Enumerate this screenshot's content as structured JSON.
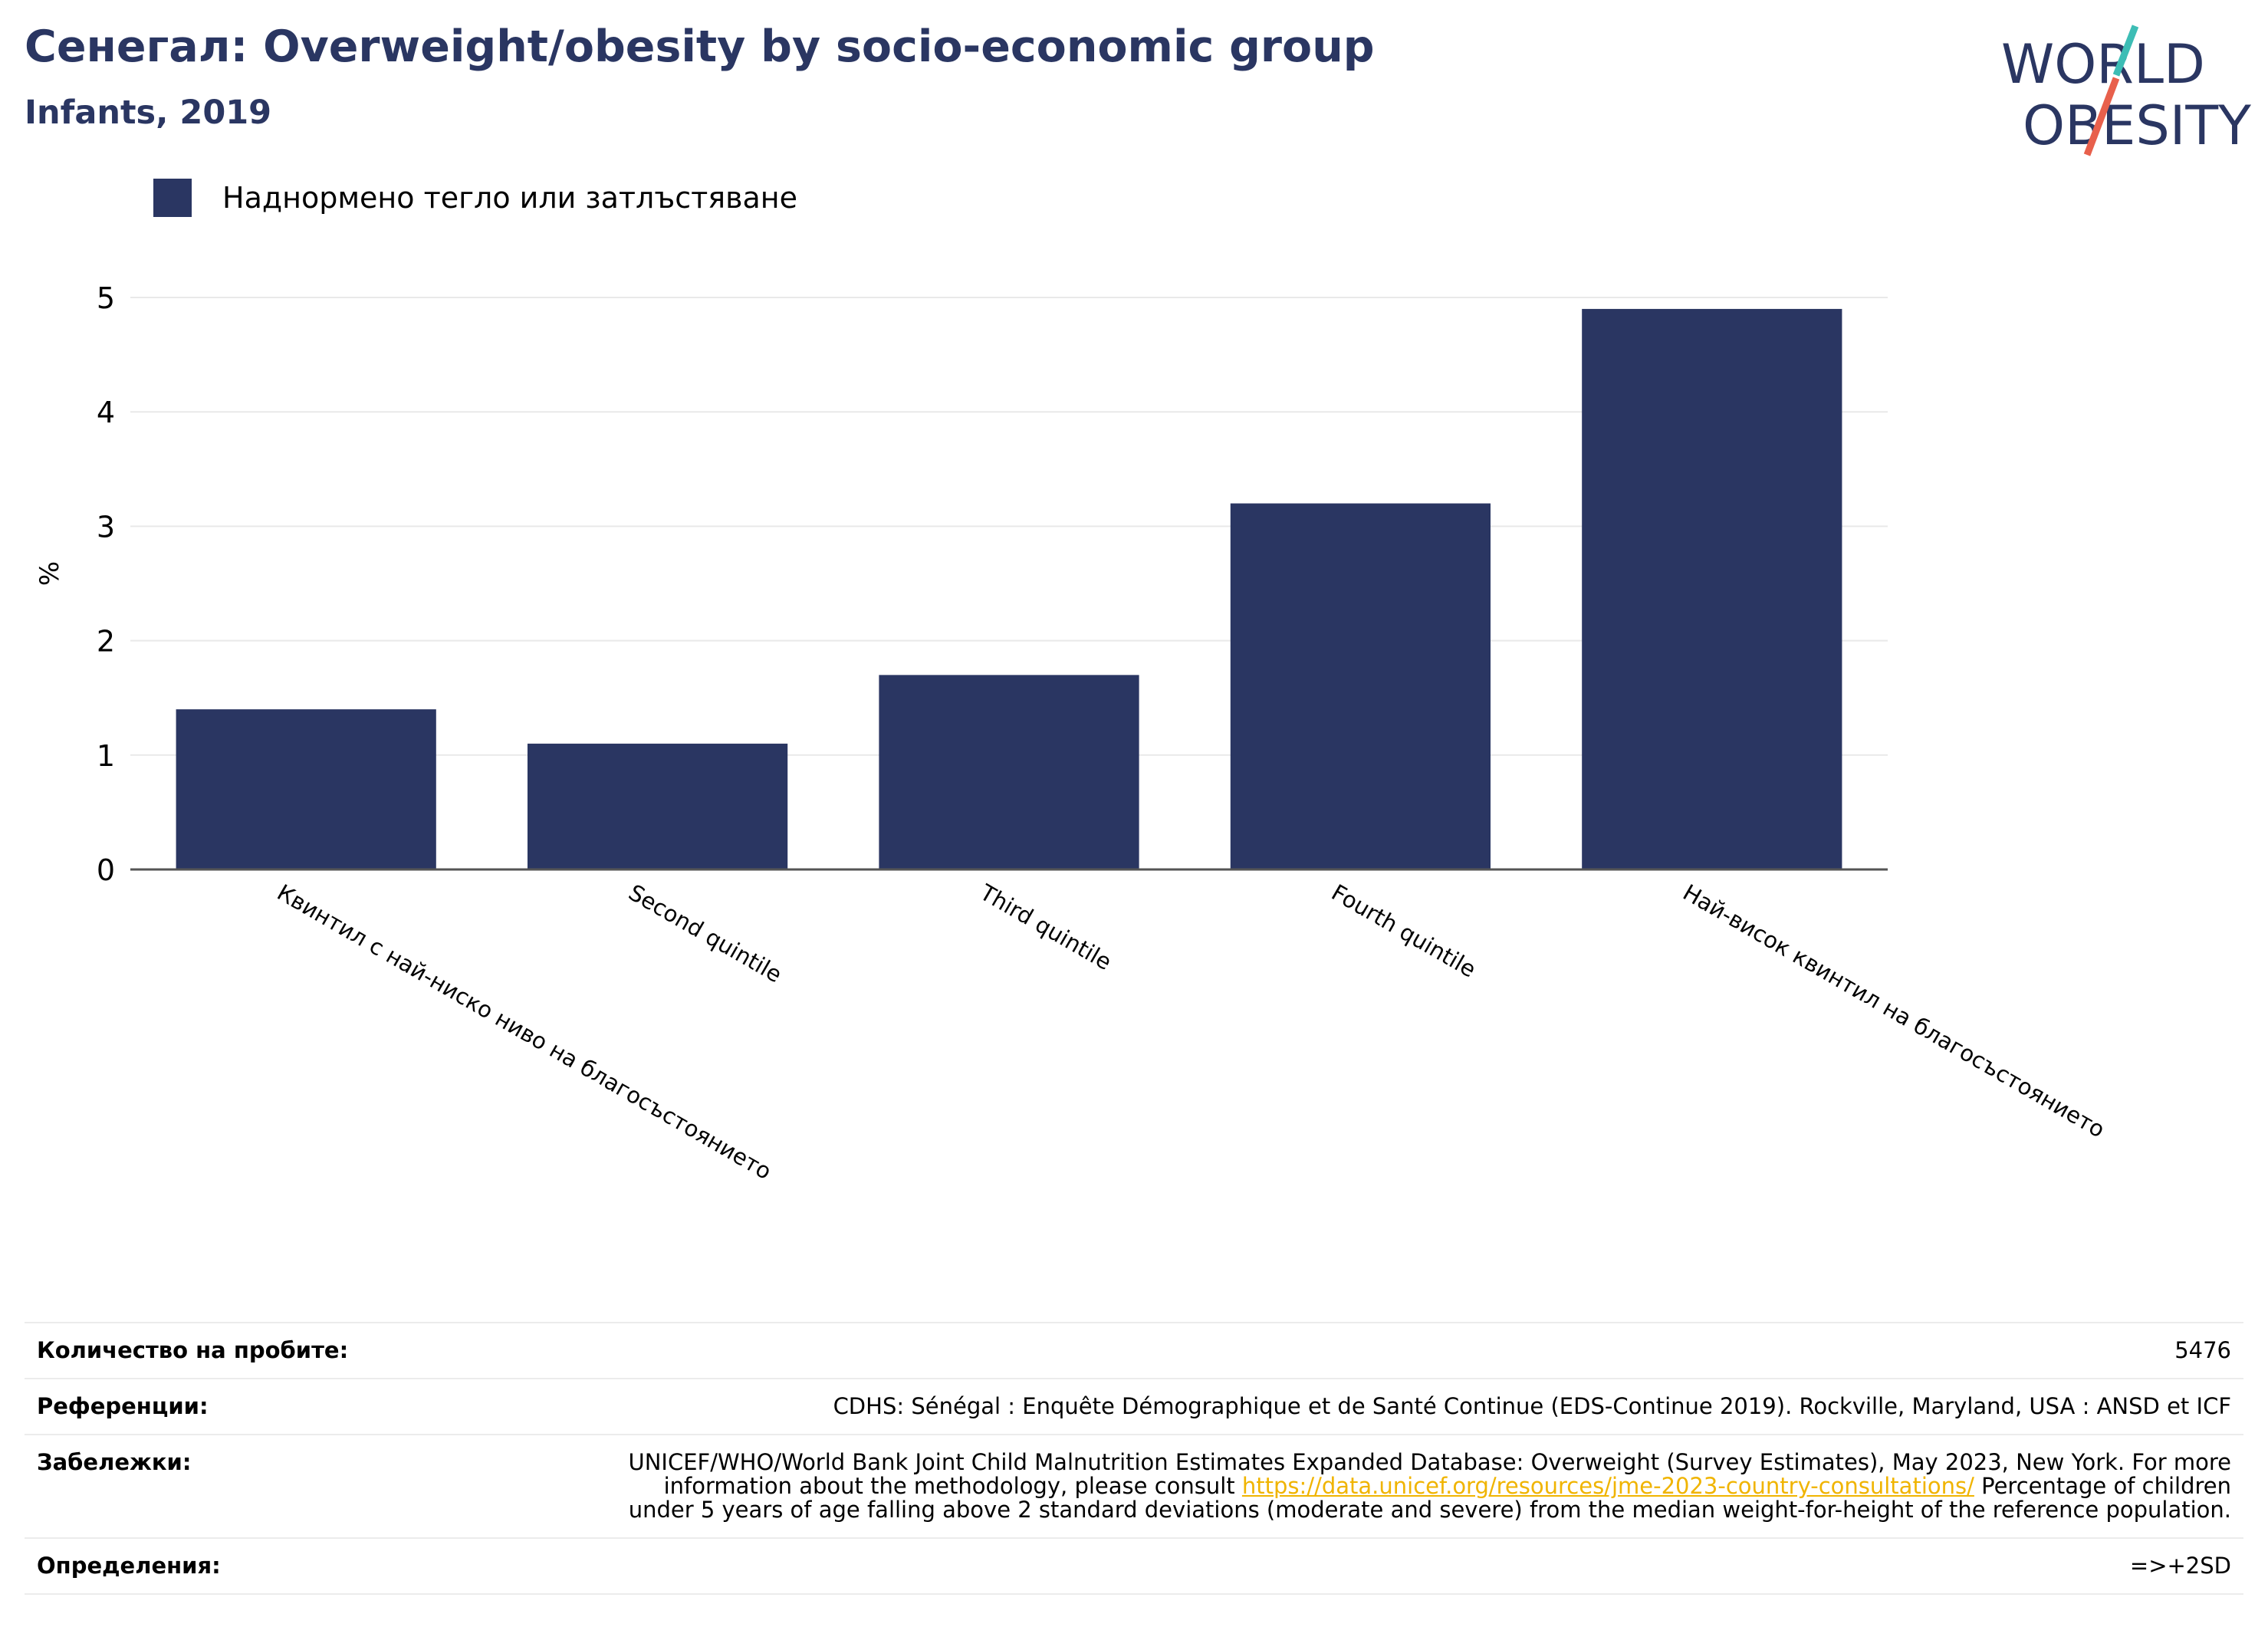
{
  "header": {
    "title": "Сенегал: Overweight/obesity by socio-economic group",
    "subtitle": "Infants, 2019"
  },
  "logo": {
    "line1": "WORLD",
    "line2": "OBESITY",
    "teal": "#3dbdb5",
    "coral": "#e8604c",
    "navy": "#2a3662"
  },
  "chart_data": {
    "type": "bar",
    "categories": [
      "Квинтил с най-ниско ниво на благосъстоянието",
      "Second quintile",
      "Third quintile",
      "Fourth quintile",
      "Най-висок квинтил на благосъстоянието"
    ],
    "series": [
      {
        "name": "Наднормено тегло или затлъстяване",
        "values": [
          1.4,
          1.1,
          1.7,
          3.2,
          4.9
        ],
        "color": "#2a3662"
      }
    ],
    "ylabel": "%",
    "ylim": [
      0,
      5
    ],
    "yticks": [
      "0",
      "1",
      "2",
      "3",
      "4",
      "5"
    ],
    "grid": true,
    "legend": "top-left"
  },
  "meta": {
    "sample_label": "Количество на пробите:",
    "sample_value": "5476",
    "references_label": "Референции:",
    "references_value": "CDHS: Sénégal : Enquête Démographique et de Santé Continue (EDS-Continue 2019). Rockville, Maryland, USA : ANSD et ICF",
    "notes_label": "Забележки:",
    "notes_before": "UNICEF/WHO/World Bank Joint Child Malnutrition Estimates Expanded Database: Overweight (Survey Estimates), May 2023, New York. For more information about the methodology, please consult",
    "notes_link": "https://data.unicef.org/resources/jme-2023-country-consultations/",
    "notes_after": "Percentage of children under 5 years of age falling above 2 standard deviations (moderate and severe) from the median weight-for-height of the reference population.",
    "definitions_label": "Определения:",
    "definitions_value": "=>+2SD"
  }
}
